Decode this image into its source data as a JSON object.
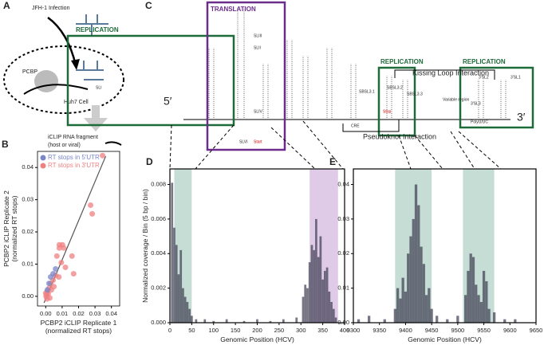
{
  "diagram_a": {
    "panel": "A",
    "infection": "JFH-1 Infection",
    "protein": "PCBP",
    "cell": "Huh7 Cell",
    "fragment": "iCLIP RNA fragment",
    "fragment_note": "(host or viral)"
  },
  "diagram_c": {
    "panel": "C",
    "five_prime": "5′",
    "three_prime": "3′",
    "boxes": [
      "REPLICATION",
      "TRANSLATION",
      "REPLICATION",
      "REPLICATION"
    ],
    "labels": [
      "SLI",
      "SLII",
      "SLIII",
      "SLIV",
      "SLVI",
      "Start",
      "Stop",
      "SBSL3.1",
      "SBSL3.2",
      "SBSL3.3",
      "Variable region",
      "3′SL1",
      "3′SL2",
      "3′SL3",
      "CRE",
      "PolyU/UC"
    ],
    "kissing": "Kissing Loop Interaction",
    "pseudoknot": "Pseudoknot Interaction"
  },
  "chart_data": [
    {
      "type": "scatter",
      "panel": "B",
      "xlabel": "PCBP2 iCLIP Replicate 1\n(normalized RT stops)",
      "ylabel": "PCBP2 iCLIP Replicate 2\n(normalized RT stops)",
      "xlim": [
        -0.005,
        0.045
      ],
      "ylim": [
        -0.003,
        0.045
      ],
      "xticks": [
        {
          "value": 0,
          "label": "0.00"
        },
        {
          "value": 0.01,
          "label": "0.01"
        },
        {
          "value": 0.02,
          "label": "0.02"
        },
        {
          "value": 0.03,
          "label": "0.03"
        },
        {
          "value": 0.04,
          "label": "0.04"
        }
      ],
      "yticks": [
        {
          "value": 0,
          "label": "0.00"
        },
        {
          "value": 0.01,
          "label": "0.01"
        },
        {
          "value": 0.02,
          "label": "0.02"
        },
        {
          "value": 0.03,
          "label": "0.03"
        },
        {
          "value": 0.04,
          "label": "0.04"
        }
      ],
      "legend": "top-left",
      "trend": {
        "x": [
          -0.001,
          0.0365
        ],
        "y": [
          -0.002,
          0.0435
        ],
        "color": "#555555"
      },
      "series": [
        {
          "name": "RT stops in 3′UTR",
          "color": "#f08080",
          "x": [
            0.0346,
            0.0273,
            0.0283,
            0.0083,
            0.0102,
            0.0083,
            0.011,
            0.0068,
            0.016,
            0.0095,
            0.012,
            0.017,
            0.008,
            0.006,
            0.0045,
            0.003,
            0.002,
            0.001,
            0.0005,
            0.0002,
            0.0008,
            0.0015,
            0.0035,
            0.005,
            0,
            0.0025
          ],
          "values": [
            0.0437,
            0.0283,
            0.0256,
            0.016,
            0.016,
            0.015,
            0.015,
            0.0125,
            0.0125,
            0.0105,
            0.009,
            0.007,
            0.006,
            0.0065,
            0.005,
            0.004,
            0.0025,
            0.0015,
            0.0005,
            0,
            -0.0008,
            0.0008,
            0.002,
            0.003,
            0.001,
            -0.0005
          ]
        },
        {
          "name": "RT stops in 5′UTR",
          "color": "#7a86c8",
          "x": [
            0.003,
            0.0045,
            0.006,
            0.002,
            0.001
          ],
          "values": [
            0.006,
            0.007,
            0.0085,
            0.004,
            0.002
          ]
        }
      ]
    },
    {
      "type": "bar",
      "panel": "D",
      "ylabel": "Normalized coverage / Bin (5 bp / bin)",
      "xlabel": "Genomic Position (HCV)",
      "xlim": [
        0,
        400
      ],
      "ylim": [
        0,
        0.0089
      ],
      "xticks": [
        0,
        50,
        100,
        150,
        200,
        250,
        300,
        350,
        400
      ],
      "yticks": [
        {
          "value": 0,
          "label": "0.000"
        },
        {
          "value": 0.002,
          "label": "0.002"
        },
        {
          "value": 0.004,
          "label": "0.004"
        },
        {
          "value": 0.006,
          "label": "0.006"
        },
        {
          "value": 0.008,
          "label": "0.008"
        }
      ],
      "bin_width": 5,
      "color": "#3c3c50",
      "regions": [
        {
          "range": [
            10,
            50
          ],
          "color": "#9ec7b8"
        },
        {
          "range": [
            320,
            385
          ],
          "color": "#c9a8d8"
        }
      ],
      "x": [
        5,
        10,
        15,
        20,
        25,
        30,
        35,
        40,
        45,
        50,
        60,
        80,
        100,
        130,
        170,
        200,
        230,
        260,
        290,
        305,
        310,
        315,
        320,
        325,
        330,
        335,
        340,
        345,
        350,
        355,
        360,
        365,
        370,
        375,
        380
      ],
      "values": [
        0.0081,
        0.0055,
        0.0045,
        0.0028,
        0.0042,
        0.002,
        0.0015,
        0.0012,
        0.0008,
        0.0004,
        0.0002,
        0.0002,
        0.0001,
        0.0002,
        0.0001,
        0.0002,
        0.0001,
        0.0002,
        0.0003,
        0.0015,
        0.0022,
        0.002,
        0.0035,
        0.0045,
        0.0042,
        0.006,
        0.0038,
        0.005,
        0.0025,
        0.003,
        0.0032,
        0.0018,
        0.0012,
        0.0008,
        0.0003
      ]
    },
    {
      "type": "bar",
      "panel": "E",
      "xlabel": "Genomic Position (HCV)",
      "xlim": [
        9300,
        9650
      ],
      "ylim": [
        0,
        0.0445
      ],
      "xticks": [
        9300,
        9350,
        9400,
        9450,
        9500,
        9550,
        9600,
        9650
      ],
      "yticks": [
        {
          "value": 0,
          "label": "0.00"
        },
        {
          "value": 0.01,
          "label": "0.01"
        },
        {
          "value": 0.02,
          "label": "0.02"
        },
        {
          "value": 0.03,
          "label": "0.03"
        },
        {
          "value": 0.04,
          "label": "0.04"
        }
      ],
      "bin_width": 5,
      "color": "#3c3c50",
      "regions": [
        {
          "range": [
            9380,
            9450
          ],
          "color": "#9ec7b8"
        },
        {
          "range": [
            9510,
            9570
          ],
          "color": "#9ec7b8"
        }
      ],
      "x": [
        9310,
        9330,
        9360,
        9380,
        9385,
        9390,
        9395,
        9400,
        9405,
        9410,
        9415,
        9420,
        9425,
        9430,
        9435,
        9440,
        9445,
        9450,
        9460,
        9480,
        9500,
        9515,
        9520,
        9525,
        9530,
        9535,
        9540,
        9545,
        9550,
        9555,
        9560,
        9570,
        9590,
        9610
      ],
      "values": [
        0.001,
        0.002,
        0.001,
        0.004,
        0.01,
        0.007,
        0.013,
        0.009,
        0.02,
        0.025,
        0.03,
        0.04,
        0.034,
        0.022,
        0.017,
        0.008,
        0.01,
        0.004,
        0.002,
        0.001,
        0.002,
        0.008,
        0.015,
        0.02,
        0.019,
        0.011,
        0.008,
        0.006,
        0.015,
        0.012,
        0.004,
        0.003,
        0.001,
        0.001
      ]
    }
  ]
}
